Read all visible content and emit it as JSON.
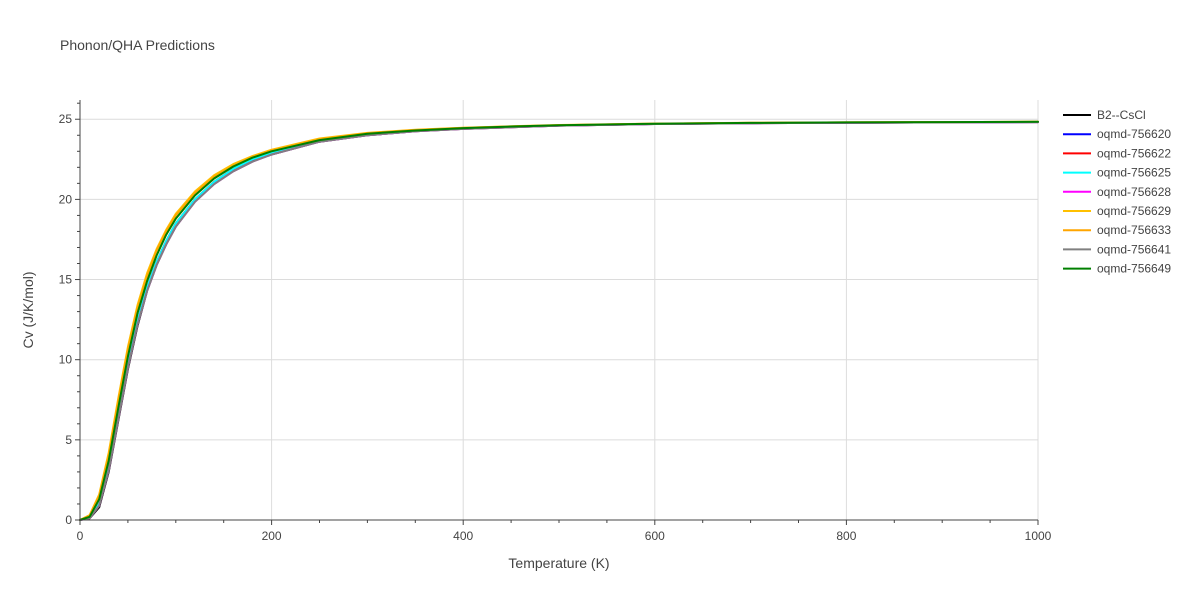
{
  "chart_data": {
    "type": "line",
    "title": "Phonon/QHA Predictions",
    "xlabel": "Temperature (K)",
    "ylabel": "Cv (J/K/mol)",
    "xlim": [
      0,
      1000
    ],
    "ylim": [
      0,
      26.2
    ],
    "xticks": [
      0,
      200,
      400,
      600,
      800,
      1000
    ],
    "xticklabels": [
      "0",
      "200",
      "400",
      "600",
      "800",
      "1000"
    ],
    "yticks": [
      0,
      5,
      10,
      15,
      20,
      25
    ],
    "yticklabels": [
      "0",
      "5",
      "10",
      "15",
      "20",
      "25"
    ],
    "grid": true,
    "legend_position": "right",
    "x": [
      0,
      10,
      20,
      30,
      40,
      50,
      60,
      70,
      80,
      90,
      100,
      120,
      140,
      160,
      180,
      200,
      250,
      300,
      350,
      400,
      450,
      500,
      600,
      700,
      800,
      900,
      1000
    ],
    "series": [
      {
        "name": "B2--CsCl",
        "color": "#000000",
        "values": [
          0,
          0.1,
          0.8,
          3.0,
          6.2,
          9.4,
          12.1,
          14.3,
          15.9,
          17.2,
          18.3,
          19.9,
          21.0,
          21.8,
          22.4,
          22.8,
          23.6,
          24.0,
          24.25,
          24.4,
          24.5,
          24.6,
          24.7,
          24.75,
          24.78,
          24.8,
          24.82
        ]
      },
      {
        "name": "oqmd-756620",
        "color": "#0000ff",
        "values": [
          0,
          0.15,
          1.0,
          3.3,
          6.5,
          9.7,
          12.4,
          14.5,
          16.1,
          17.4,
          18.5,
          20.0,
          21.1,
          21.9,
          22.5,
          22.9,
          23.65,
          24.05,
          24.28,
          24.42,
          24.52,
          24.61,
          24.71,
          24.76,
          24.79,
          24.81,
          24.83
        ]
      },
      {
        "name": "oqmd-756622",
        "color": "#ff0000",
        "values": [
          0,
          0.15,
          1.0,
          3.3,
          6.5,
          9.7,
          12.4,
          14.5,
          16.1,
          17.4,
          18.5,
          20.0,
          21.1,
          21.9,
          22.5,
          22.9,
          23.65,
          24.05,
          24.28,
          24.42,
          24.52,
          24.61,
          24.71,
          24.76,
          24.79,
          24.81,
          24.83
        ]
      },
      {
        "name": "oqmd-756625",
        "color": "#00ffff",
        "values": [
          0,
          0.15,
          1.0,
          3.3,
          6.5,
          9.7,
          12.4,
          14.5,
          16.1,
          17.4,
          18.5,
          20.0,
          21.1,
          21.9,
          22.5,
          22.9,
          23.65,
          24.05,
          24.28,
          24.42,
          24.52,
          24.61,
          24.71,
          24.76,
          24.79,
          24.81,
          24.83
        ]
      },
      {
        "name": "oqmd-756628",
        "color": "#ff00ff",
        "values": [
          0,
          0.12,
          0.9,
          3.1,
          6.3,
          9.5,
          12.2,
          14.3,
          15.9,
          17.2,
          18.3,
          19.85,
          20.95,
          21.75,
          22.35,
          22.8,
          23.6,
          24.0,
          24.25,
          24.4,
          24.5,
          24.6,
          24.7,
          24.75,
          24.78,
          24.8,
          24.82
        ]
      },
      {
        "name": "oqmd-756629",
        "color": "#ffc000",
        "values": [
          0,
          0.3,
          1.6,
          4.2,
          7.6,
          10.8,
          13.4,
          15.4,
          16.9,
          18.1,
          19.1,
          20.5,
          21.5,
          22.2,
          22.7,
          23.1,
          23.8,
          24.15,
          24.35,
          24.47,
          24.56,
          24.64,
          24.73,
          24.78,
          24.8,
          24.82,
          24.84
        ]
      },
      {
        "name": "oqmd-756633",
        "color": "#ffa500",
        "values": [
          0,
          0.28,
          1.5,
          4.0,
          7.4,
          10.6,
          13.2,
          15.2,
          16.8,
          18.0,
          19.0,
          20.4,
          21.4,
          22.1,
          22.65,
          23.05,
          23.75,
          24.12,
          24.33,
          24.46,
          24.55,
          24.63,
          24.72,
          24.77,
          24.8,
          24.82,
          24.84
        ]
      },
      {
        "name": "oqmd-756641",
        "color": "#808080",
        "values": [
          0,
          0.12,
          0.9,
          3.1,
          6.3,
          9.5,
          12.2,
          14.3,
          15.9,
          17.2,
          18.3,
          19.85,
          20.95,
          21.75,
          22.35,
          22.8,
          23.6,
          24.0,
          24.25,
          24.4,
          24.5,
          24.6,
          24.7,
          24.75,
          24.78,
          24.8,
          24.82
        ]
      },
      {
        "name": "oqmd-756649",
        "color": "#008000",
        "values": [
          0,
          0.2,
          1.3,
          3.7,
          7.0,
          10.2,
          12.9,
          14.9,
          16.5,
          17.8,
          18.8,
          20.25,
          21.3,
          22.05,
          22.6,
          23.0,
          23.7,
          24.1,
          24.3,
          24.45,
          24.55,
          24.63,
          24.72,
          24.77,
          24.8,
          24.82,
          24.84
        ]
      }
    ]
  }
}
